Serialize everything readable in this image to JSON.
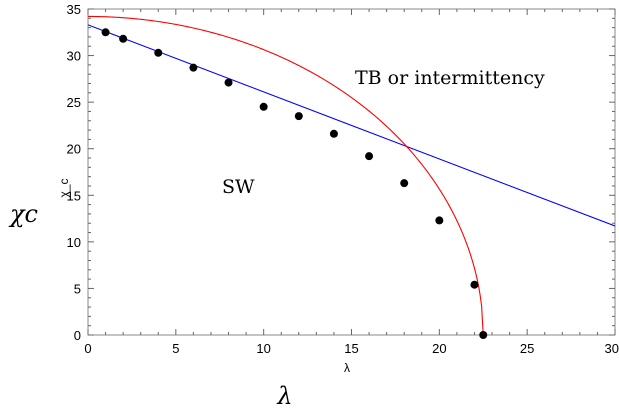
{
  "chart_data": {
    "type": "scatter",
    "title": "",
    "xlabel": "λ",
    "ylabel": "χ_c",
    "xlabel_outer": "λ",
    "ylabel_outer": "χc",
    "xlim": [
      0,
      30
    ],
    "ylim": [
      0,
      35
    ],
    "xticks": [
      "0",
      "5",
      "10",
      "15",
      "20",
      "25",
      "30"
    ],
    "yticks": [
      "0",
      "5",
      "10",
      "15",
      "20",
      "25",
      "30",
      "35"
    ],
    "grid": false,
    "region_labels": {
      "upper": "TB or intermittency",
      "lower": "SW"
    },
    "series": [
      {
        "kind": "points",
        "color": "#000000",
        "x": [
          1,
          2,
          4,
          6,
          8,
          10,
          12,
          14,
          16,
          18,
          20,
          22,
          22.5
        ],
        "y": [
          32.5,
          31.8,
          30.3,
          28.7,
          27.1,
          24.5,
          23.5,
          21.6,
          19.2,
          16.3,
          12.3,
          5.4,
          0
        ]
      },
      {
        "kind": "line",
        "color": "#0000ff",
        "x": [
          0,
          30
        ],
        "y": [
          33.3,
          11.7
        ]
      },
      {
        "kind": "curve",
        "color": "#ff0000",
        "equation": "y = 34.2 * sqrt(1 - (x/22.5)^2)",
        "y0": 34.2,
        "x_end": 22.5
      }
    ]
  }
}
